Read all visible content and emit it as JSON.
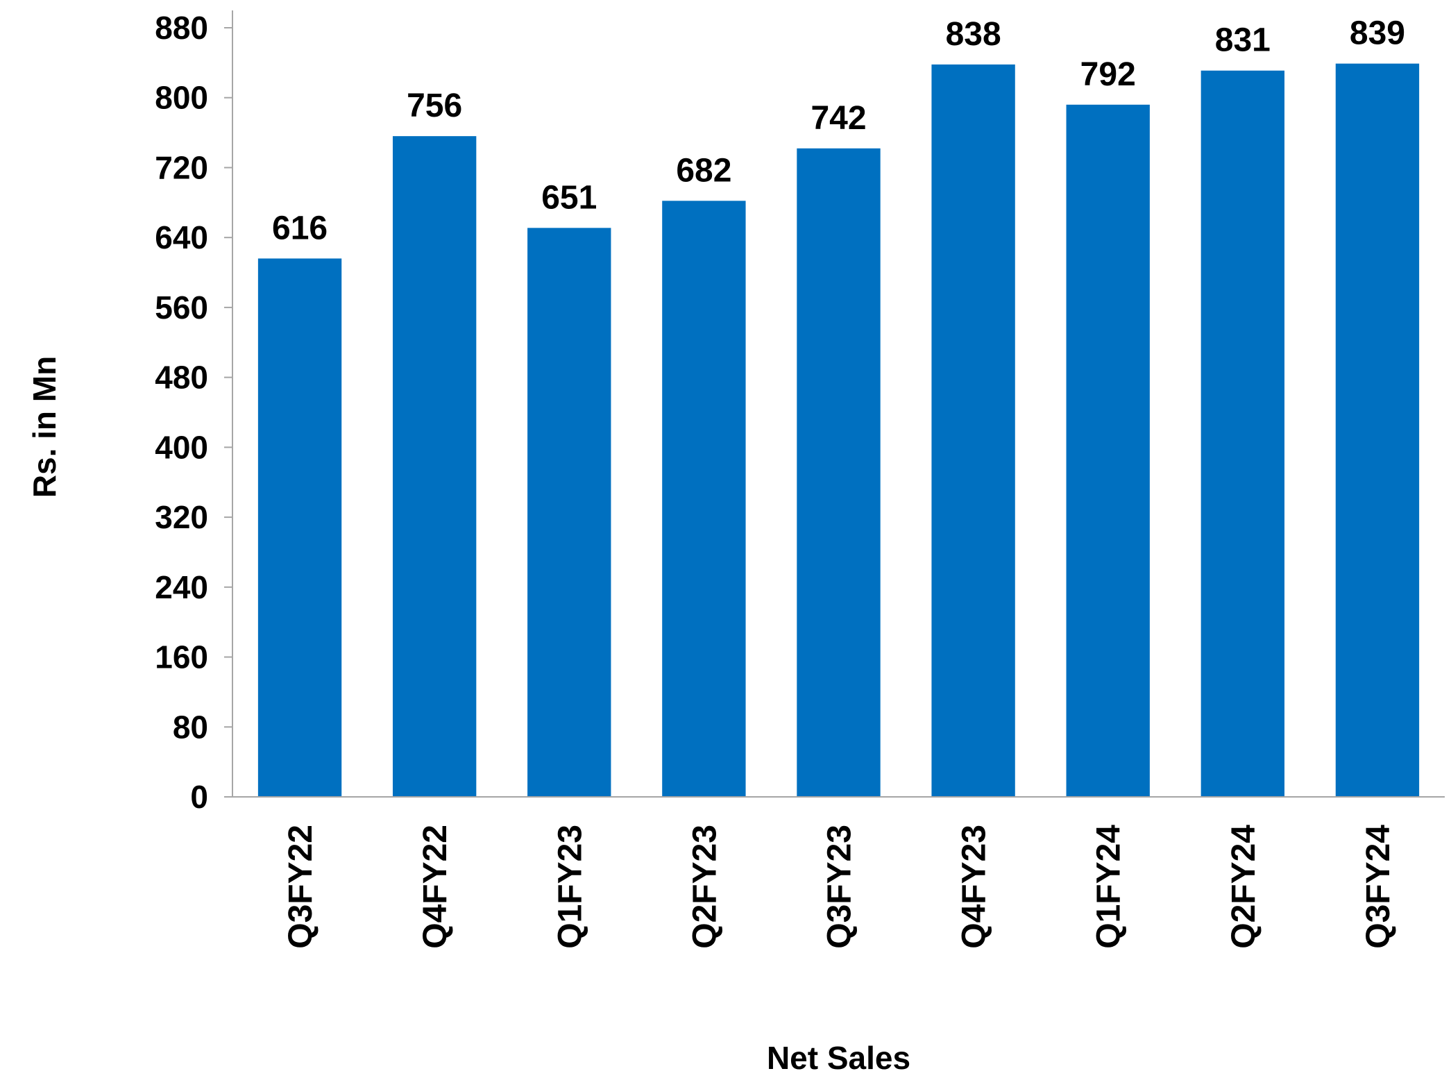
{
  "chart_data": {
    "type": "bar",
    "categories": [
      "Q3FY22",
      "Q4FY22",
      "Q1FY23",
      "Q2FY23",
      "Q3FY23",
      "Q4FY23",
      "Q1FY24",
      "Q2FY24",
      "Q3FY24"
    ],
    "values": [
      616,
      756,
      651,
      682,
      742,
      838,
      792,
      831,
      839
    ],
    "data_labels": [
      "616",
      "756",
      "651",
      "682",
      "742",
      "838",
      "792",
      "831",
      "839"
    ],
    "title": "",
    "xlabel": "Net Sales",
    "ylabel": "Rs. in Mn",
    "ylim": [
      0,
      880
    ],
    "yticks": [
      0,
      80,
      160,
      240,
      320,
      400,
      480,
      560,
      640,
      720,
      800,
      880
    ],
    "grid": false,
    "legend": "none",
    "bar_color": "#0070C0",
    "axis_color": "#A6A6A6"
  }
}
